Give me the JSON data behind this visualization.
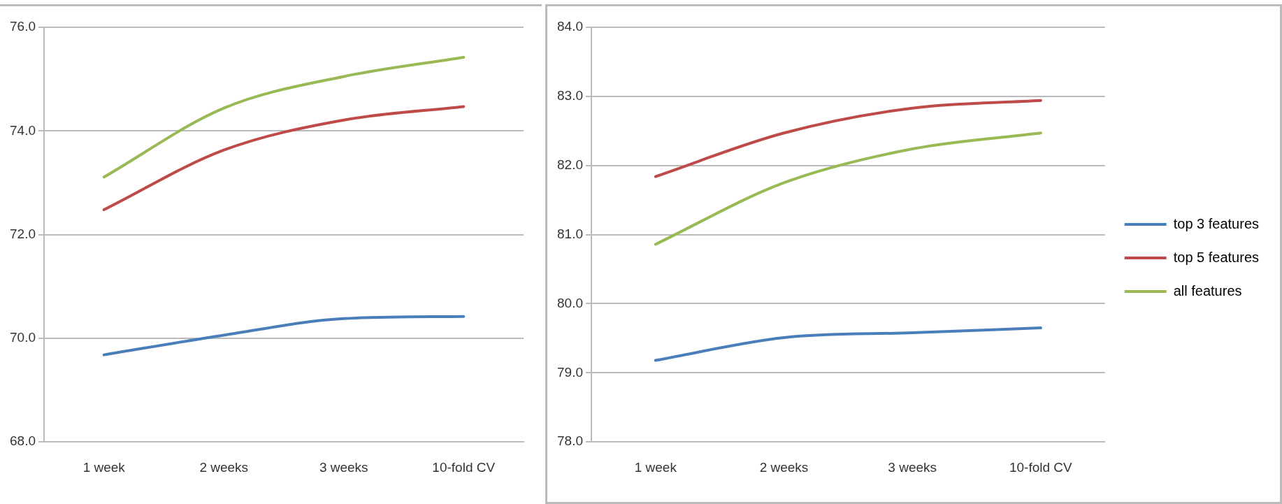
{
  "chart_data": [
    {
      "type": "line",
      "categories": [
        "1 week",
        "2 weeks",
        "3 weeks",
        "10-fold CV"
      ],
      "series": [
        {
          "color": "#4a7ebb",
          "values": [
            69.68,
            70.06,
            70.38,
            70.42
          ]
        },
        {
          "color": "#be4b48",
          "values": [
            72.48,
            73.63,
            74.21,
            74.47
          ]
        },
        {
          "color": "#98b954",
          "values": [
            73.11,
            74.44,
            75.05,
            75.42
          ]
        }
      ],
      "ylim": [
        68,
        76
      ],
      "yticks": [
        {
          "value": 68,
          "label": "68.0"
        },
        {
          "value": 70,
          "label": "70.0"
        },
        {
          "value": 72,
          "label": "72.0"
        },
        {
          "value": 74,
          "label": "74.0"
        },
        {
          "value": 76,
          "label": "76.0"
        }
      ],
      "grid": "y",
      "legend": false,
      "marker": "none",
      "line_style": "solid"
    },
    {
      "type": "line",
      "categories": [
        "1 week",
        "2 weeks",
        "3 weeks",
        "10-fold CV"
      ],
      "series": [
        {
          "name": "top 3 features",
          "color": "#4a7ebb",
          "values": [
            79.18,
            79.51,
            79.58,
            79.65
          ]
        },
        {
          "name": "top 5 features",
          "color": "#be4b48",
          "values": [
            81.84,
            82.47,
            82.83,
            82.94
          ]
        },
        {
          "name": "all features",
          "color": "#98b954",
          "values": [
            80.86,
            81.75,
            82.24,
            82.47
          ]
        }
      ],
      "ylim": [
        78,
        84
      ],
      "yticks": [
        {
          "value": 78,
          "label": "78.0"
        },
        {
          "value": 79,
          "label": "79.0"
        },
        {
          "value": 80,
          "label": "80.0"
        },
        {
          "value": 81,
          "label": "81.0"
        },
        {
          "value": 82,
          "label": "82.0"
        },
        {
          "value": 83,
          "label": "83.0"
        },
        {
          "value": 84,
          "label": "84.0"
        }
      ],
      "grid": "y",
      "legend": "right",
      "marker": "none",
      "line_style": "solid"
    }
  ]
}
